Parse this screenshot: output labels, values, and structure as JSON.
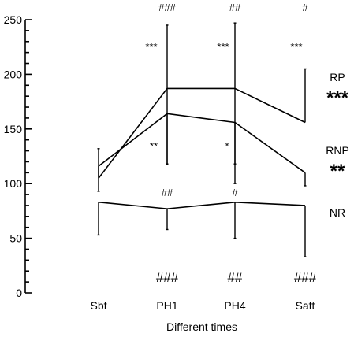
{
  "chart_data": {
    "type": "line",
    "categories": [
      "Sbf",
      "PH1",
      "PH4",
      "Saft"
    ],
    "xlabel": "Different times",
    "ylabel": "",
    "ylim": [
      0,
      250
    ],
    "yticks": [
      0,
      50,
      100,
      150,
      200,
      250
    ],
    "grid": false,
    "series": [
      {
        "name": "RP",
        "significance": "***",
        "values": [
          105,
          187,
          187,
          156
        ],
        "err_upper": [
          132,
          245,
          247,
          205
        ],
        "err_lower": [
          null,
          118,
          118,
          null
        ],
        "annotations": [
          "",
          "***",
          "***",
          "***"
        ]
      },
      {
        "name": "RNP",
        "significance": "**",
        "values": [
          116,
          164,
          156,
          110
        ],
        "err_upper": [
          null,
          null,
          null,
          null
        ],
        "err_lower": [
          93,
          118,
          100,
          98
        ],
        "annotations": [
          "",
          "**",
          "*",
          ""
        ]
      },
      {
        "name": "NR",
        "significance": "",
        "values": [
          83,
          77,
          83,
          80
        ],
        "err_upper": [
          null,
          null,
          null,
          null
        ],
        "err_lower": [
          53,
          58,
          50,
          33
        ],
        "annotations": [
          "",
          "##",
          "#",
          ""
        ]
      }
    ],
    "top_annotations": [
      "",
      "###",
      "##",
      "#"
    ],
    "bottom_annotations": [
      "",
      "###",
      "##",
      "###"
    ]
  }
}
